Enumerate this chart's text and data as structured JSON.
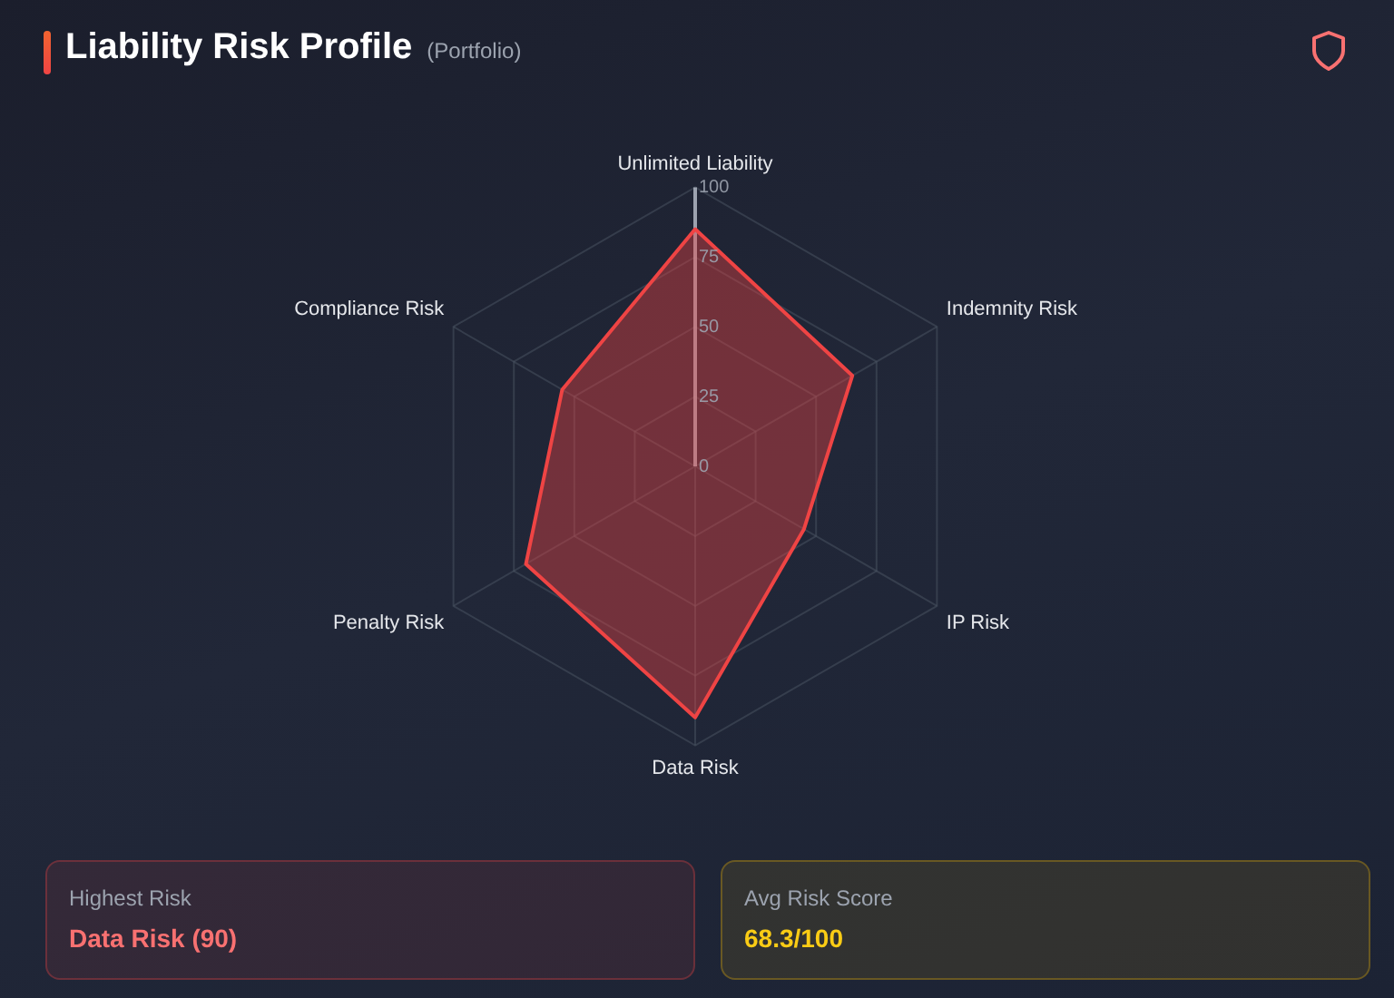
{
  "chart_data": [
    {
      "type": "radar",
      "title": "Liability Risk Profile",
      "subtitle": "(Portfolio)",
      "categories": [
        "Unlimited Liability",
        "Indemnity Risk",
        "IP Risk",
        "Data Risk",
        "Penalty Risk",
        "Compliance Risk"
      ],
      "series": [
        {
          "color": "#ef4444",
          "values": [
            85,
            65,
            45,
            90,
            70,
            55
          ]
        }
      ],
      "ylim": [
        0,
        100
      ],
      "yticks": [
        0,
        25,
        50,
        75,
        100
      ],
      "grid": true,
      "marker": "none"
    },
    {
      "type": "other",
      "title": "Highest Risk",
      "annotations": [
        "Data Risk (90)"
      ]
    },
    {
      "type": "other",
      "title": "Avg Risk Score",
      "annotations": [
        "68.3/100"
      ]
    }
  ]
}
